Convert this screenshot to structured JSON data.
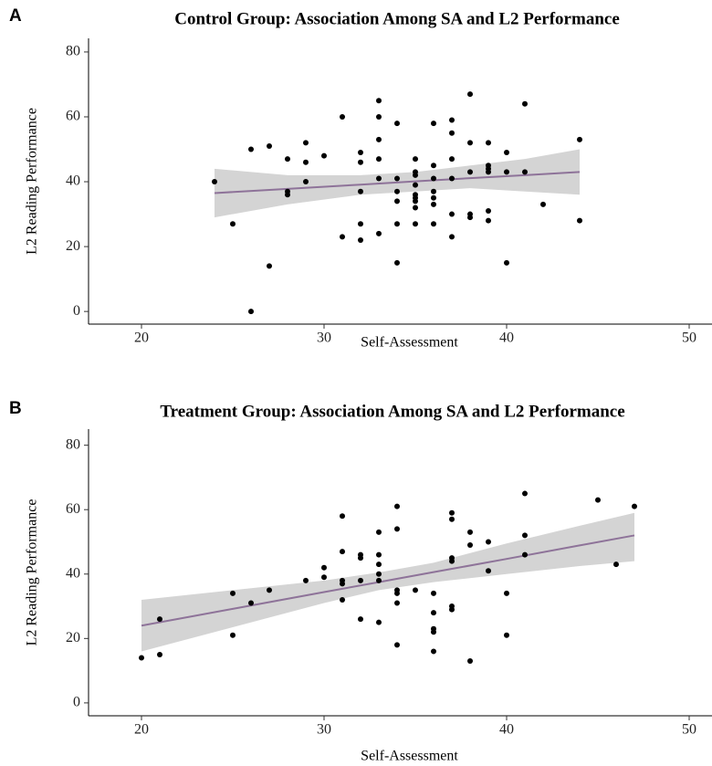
{
  "chart_data": [
    {
      "type": "scatter",
      "panel_label": "A",
      "title": "Control Group: Association Among SA and L2 Performance",
      "x_label": "Self-Assessment",
      "y_label": "L2 Reading Performance",
      "xlim": [
        17.1,
        51.25
      ],
      "ylim": [
        -3.9,
        84.2
      ],
      "xticks": [
        20,
        30,
        40,
        50
      ],
      "yticks": [
        0,
        20,
        40,
        60,
        80
      ],
      "grid": false,
      "point_color": "#000000",
      "x": [
        24,
        25,
        26,
        26,
        27,
        27,
        28,
        28,
        28,
        29,
        29,
        29,
        30,
        31,
        31,
        32,
        32,
        32,
        32,
        32,
        33,
        33,
        33,
        33,
        33,
        33,
        34,
        34,
        34,
        34,
        34,
        34,
        35,
        35,
        35,
        35,
        35,
        35,
        35,
        35,
        35,
        36,
        36,
        36,
        36,
        36,
        36,
        36,
        37,
        37,
        37,
        37,
        37,
        37,
        38,
        38,
        38,
        38,
        38,
        39,
        39,
        39,
        39,
        39,
        39,
        40,
        40,
        40,
        41,
        41,
        42,
        44,
        44
      ],
      "values": [
        40,
        27,
        50,
        0,
        51,
        14,
        47,
        37,
        36,
        52,
        46,
        40,
        48,
        60,
        23,
        49,
        46,
        37,
        27,
        22,
        65,
        60,
        53,
        47,
        41,
        24,
        58,
        41,
        37,
        34,
        27,
        15,
        47,
        43,
        42,
        39,
        36,
        35,
        34,
        32,
        27,
        58,
        45,
        41,
        37,
        35,
        33,
        27,
        59,
        55,
        47,
        41,
        30,
        23,
        67,
        52,
        43,
        30,
        29,
        52,
        45,
        44,
        43,
        31,
        28,
        49,
        43,
        15,
        64,
        43,
        33,
        53,
        28
      ],
      "fit": {
        "line_color": "#8e7399",
        "band_color": "#d4d4d4",
        "x": [
          24,
          28,
          32,
          35,
          38,
          41,
          44
        ],
        "values": [
          36.5,
          37.8,
          39.1,
          40.1,
          41.1,
          42,
          43
        ],
        "lower": [
          29,
          33,
          36,
          37,
          38,
          37,
          36
        ],
        "upper": [
          44,
          42,
          42,
          43,
          45,
          47,
          50
        ]
      }
    },
    {
      "type": "scatter",
      "panel_label": "B",
      "title": "Treatment Group: Association Among SA and L2 Performance",
      "x_label": "Self-Assessment",
      "y_label": "L2 Reading Performance",
      "xlim": [
        17.1,
        51.25
      ],
      "ylim": [
        -4,
        85
      ],
      "xticks": [
        20,
        30,
        40,
        50
      ],
      "yticks": [
        0,
        20,
        40,
        60,
        80
      ],
      "grid": false,
      "point_color": "#000000",
      "x": [
        20,
        21,
        21,
        25,
        25,
        26,
        27,
        29,
        30,
        30,
        31,
        31,
        31,
        31,
        31,
        32,
        32,
        32,
        32,
        33,
        33,
        33,
        33,
        33,
        33,
        34,
        34,
        34,
        34,
        34,
        34,
        35,
        36,
        36,
        36,
        36,
        36,
        37,
        37,
        37,
        37,
        37,
        37,
        38,
        38,
        38,
        39,
        39,
        40,
        40,
        41,
        41,
        41,
        45,
        46,
        47
      ],
      "values": [
        14,
        26,
        15,
        34,
        21,
        31,
        35,
        38,
        42,
        39,
        58,
        47,
        38,
        37,
        32,
        46,
        45,
        38,
        26,
        53,
        46,
        43,
        40,
        38,
        25,
        61,
        54,
        35,
        34,
        31,
        18,
        35,
        34,
        28,
        23,
        22,
        16,
        59,
        57,
        45,
        44,
        30,
        29,
        53,
        49,
        13,
        50,
        41,
        34,
        21,
        65,
        52,
        46,
        63,
        43,
        61
      ],
      "fit": {
        "line_color": "#8e7399",
        "band_color": "#d4d4d4",
        "x": [
          20,
          25,
          30,
          33,
          36,
          40,
          44,
          47
        ],
        "values": [
          24,
          29.2,
          34.4,
          37.5,
          40.6,
          44.7,
          48.9,
          52
        ],
        "lower": [
          16,
          23.5,
          31,
          35,
          37.5,
          40,
          42.5,
          44
        ],
        "upper": [
          32,
          35,
          38,
          40.5,
          43.5,
          49.5,
          55,
          59
        ]
      }
    }
  ]
}
